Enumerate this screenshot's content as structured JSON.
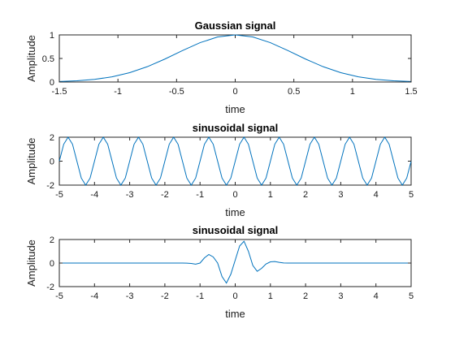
{
  "figure": {
    "series_color": "#0072BD"
  },
  "chart_data": [
    {
      "type": "line",
      "title": "Gaussian signal",
      "xlabel": "time",
      "ylabel": "Amplitude",
      "xlim": [
        -1.5,
        1.5
      ],
      "ylim": [
        0,
        1
      ],
      "xticks": [
        -1.5,
        -1,
        -0.5,
        0,
        0.5,
        1,
        1.5
      ],
      "xtick_labels": [
        "-1.5",
        "-1",
        "-0.5",
        "0",
        "0.5",
        "1",
        "1.5"
      ],
      "yticks": [
        0,
        0.5,
        1
      ],
      "ytick_labels": [
        "0",
        "0.5",
        "1"
      ],
      "grid": false,
      "series": [
        {
          "x": [
            -1.5,
            -1.35,
            -1.2,
            -1.05,
            -0.9,
            -0.75,
            -0.6,
            -0.45,
            -0.3,
            -0.15,
            0,
            0.15,
            0.3,
            0.45,
            0.6,
            0.75,
            0.9,
            1.05,
            1.2,
            1.35,
            1.5
          ],
          "y": [
            0.011,
            0.026,
            0.056,
            0.11,
            0.198,
            0.325,
            0.487,
            0.667,
            0.835,
            0.956,
            1.0,
            0.956,
            0.835,
            0.667,
            0.487,
            0.325,
            0.198,
            0.11,
            0.056,
            0.026,
            0.011
          ]
        }
      ]
    },
    {
      "type": "line",
      "title": "sinusoidal signal",
      "xlabel": "time",
      "ylabel": "Amplitude",
      "xlim": [
        -5,
        5
      ],
      "ylim": [
        -2,
        2
      ],
      "xticks": [
        -5,
        -4,
        -3,
        -2,
        -1,
        0,
        1,
        2,
        3,
        4,
        5
      ],
      "xtick_labels": [
        "-5",
        "-4",
        "-3",
        "-2",
        "-1",
        "0",
        "1",
        "2",
        "3",
        "4",
        "5"
      ],
      "yticks": [
        -2,
        0,
        2
      ],
      "ytick_labels": [
        "-2",
        "0",
        "2"
      ],
      "grid": false,
      "series": [
        {
          "x": [
            -5,
            -4.875,
            -4.75,
            -4.625,
            -4.5,
            -4.375,
            -4.25,
            -4.125,
            -4,
            -3.875,
            -3.75,
            -3.625,
            -3.5,
            -3.375,
            -3.25,
            -3.125,
            -3,
            -2.875,
            -2.75,
            -2.625,
            -2.5,
            -2.375,
            -2.25,
            -2.125,
            -2,
            -1.875,
            -1.75,
            -1.625,
            -1.5,
            -1.375,
            -1.25,
            -1.125,
            -1,
            -0.875,
            -0.75,
            -0.625,
            -0.5,
            -0.375,
            -0.25,
            -0.125,
            0,
            0.125,
            0.25,
            0.375,
            0.5,
            0.625,
            0.75,
            0.875,
            1,
            1.125,
            1.25,
            1.375,
            1.5,
            1.625,
            1.75,
            1.875,
            2,
            2.125,
            2.25,
            2.375,
            2.5,
            2.625,
            2.75,
            2.875,
            3,
            3.125,
            3.25,
            3.375,
            3.5,
            3.625,
            3.75,
            3.875,
            4,
            4.125,
            4.25,
            4.375,
            4.5,
            4.625,
            4.75,
            4.875,
            5
          ],
          "y": [
            0,
            1.414,
            2,
            1.414,
            0,
            -1.414,
            -2,
            -1.414,
            0,
            1.414,
            2,
            1.414,
            0,
            -1.414,
            -2,
            -1.414,
            0,
            1.414,
            2,
            1.414,
            0,
            -1.414,
            -2,
            -1.414,
            0,
            1.414,
            2,
            1.414,
            0,
            -1.414,
            -2,
            -1.414,
            0,
            1.414,
            2,
            1.414,
            0,
            -1.414,
            -2,
            -1.414,
            0,
            1.414,
            2,
            1.414,
            0,
            -1.414,
            -2,
            -1.414,
            0,
            1.414,
            2,
            1.414,
            0,
            -1.414,
            -2,
            -1.414,
            0,
            1.414,
            2,
            1.414,
            0,
            -1.414,
            -2,
            -1.414,
            0,
            1.414,
            2,
            1.414,
            0,
            -1.414,
            -2,
            -1.414,
            0,
            1.414,
            2,
            1.414,
            0,
            -1.414,
            -2,
            -1.414,
            0
          ]
        }
      ]
    },
    {
      "type": "line",
      "title": "sinusoidal signal",
      "xlabel": "time",
      "ylabel": "Amplitude",
      "xlim": [
        -5,
        5
      ],
      "ylim": [
        -2,
        2
      ],
      "xticks": [
        -5,
        -4,
        -3,
        -2,
        -1,
        0,
        1,
        2,
        3,
        4,
        5
      ],
      "xtick_labels": [
        "-5",
        "-4",
        "-3",
        "-2",
        "-1",
        "0",
        "1",
        "2",
        "3",
        "4",
        "5"
      ],
      "yticks": [
        -2,
        0,
        2
      ],
      "ytick_labels": [
        "-2",
        "0",
        "2"
      ],
      "grid": false,
      "series": [
        {
          "x": [
            -5,
            -2,
            -1.5,
            -1.375,
            -1.25,
            -1.125,
            -1,
            -0.875,
            -0.75,
            -0.625,
            -0.5,
            -0.375,
            -0.25,
            -0.125,
            0,
            0.125,
            0.25,
            0.375,
            0.5,
            0.625,
            0.75,
            0.875,
            1,
            1.125,
            1.25,
            1.375,
            1.5,
            2,
            5
          ],
          "y": [
            0,
            0,
            0,
            -0.005,
            -0.036,
            -0.09,
            0,
            0.44,
            0.73,
            0.52,
            0,
            -1.15,
            -1.7,
            -0.95,
            0.25,
            1.45,
            1.85,
            1.0,
            -0.2,
            -0.7,
            -0.45,
            -0.08,
            0.1,
            0.13,
            0.06,
            0.01,
            0,
            0,
            0
          ]
        }
      ]
    }
  ]
}
